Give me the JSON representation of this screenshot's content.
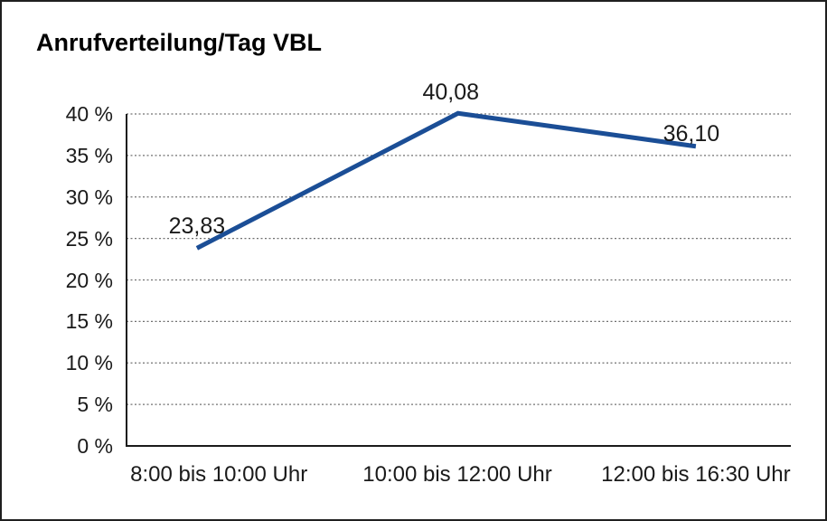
{
  "chart": {
    "title": "Anrufverteilung/Tag VBL"
  },
  "chart_data": {
    "type": "line",
    "title": "Anrufverteilung/Tag VBL",
    "categories": [
      "8:00 bis 10:00 Uhr",
      "10:00 bis 12:00 Uhr",
      "12:00 bis 16:30 Uhr"
    ],
    "series": [
      {
        "name": "Anrufverteilung",
        "values": [
          23.83,
          40.08,
          36.1
        ],
        "data_labels": [
          "23,83",
          "40,08",
          "36,10"
        ]
      }
    ],
    "xlabel": "",
    "ylabel": "",
    "ylim": [
      0,
      40
    ],
    "y_tick_step": 5,
    "y_tick_labels": [
      "0 %",
      "5 %",
      "10 %",
      "15 %",
      "20 %",
      "25 %",
      "30 %",
      "35 %",
      "40 %"
    ],
    "grid": "horizontal dotted",
    "legend": "none",
    "colors": {
      "line": "#1B4E96",
      "axis": "#1a1a1a",
      "gridline": "#707070",
      "text": "#1a1a1a",
      "background": "#ffffff"
    }
  }
}
